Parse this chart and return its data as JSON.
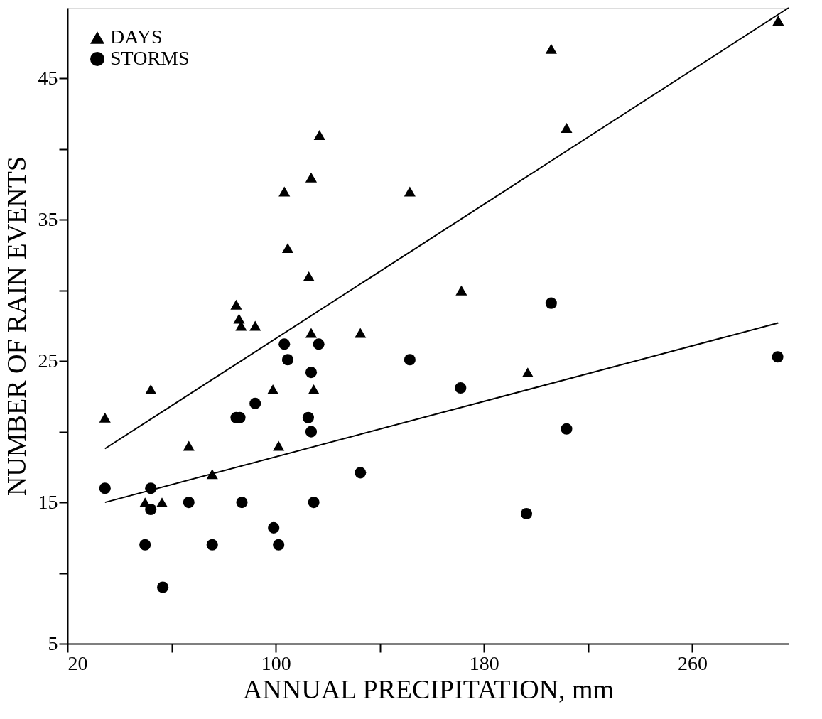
{
  "chart_data": {
    "type": "scatter",
    "xlabel": "ANNUAL PRECIPITATION, mm",
    "ylabel": "NUMBER OF RAIN EVENTS",
    "xlim": [
      20,
      297
    ],
    "xticks": [
      20,
      {
        "value": 60,
        "label": null
      },
      100,
      {
        "value": 140,
        "label": null
      },
      180,
      {
        "value": 220,
        "label": null
      },
      260
    ],
    "ylim": [
      5,
      50
    ],
    "yticks": [
      5,
      {
        "value": 10,
        "label": null
      },
      15,
      {
        "value": 20,
        "label": null
      },
      25,
      {
        "value": 30,
        "label": null
      },
      35,
      {
        "value": 40,
        "label": null
      },
      45
    ],
    "grid": false,
    "legend": "top left",
    "series": [
      {
        "name": "DAYS",
        "color": "#000000",
        "type": "scatter",
        "marker": "triangle",
        "x": [
          34.4,
          49.8,
          52,
          56.3,
          66.6,
          75.6,
          84.8,
          85.9,
          86.7,
          92.1,
          98.9,
          101.1,
          103.3,
          104.6,
          112.7,
          113.6,
          113.6,
          114.6,
          116.8,
          132.5,
          151.5,
          171.3,
          196.8,
          205.8,
          211.7,
          293
        ],
        "values": [
          21,
          15,
          23,
          15,
          19,
          17,
          29,
          28,
          27.5,
          27.5,
          23,
          19,
          37,
          33,
          31,
          38,
          27,
          23,
          41,
          27,
          37,
          30,
          24.2,
          47.1,
          41.5,
          49.1
        ]
      },
      {
        "name": "STORMS",
        "color": "#000000",
        "type": "scatter",
        "marker": "circle",
        "x": [
          34.4,
          49.8,
          52,
          52,
          56.6,
          66.6,
          75.6,
          84.8,
          86.2,
          87,
          92.1,
          99.2,
          101.1,
          103.3,
          104.6,
          112.5,
          113.6,
          113.6,
          114.6,
          116.5,
          132.5,
          151.5,
          171,
          196.3,
          205.8,
          211.7,
          292.8
        ],
        "values": [
          16,
          12,
          16,
          14.5,
          9,
          15,
          12,
          21,
          21,
          15,
          22,
          13.2,
          12,
          26.2,
          25.1,
          21,
          24.2,
          20,
          15,
          26.2,
          17.1,
          25.1,
          23.1,
          14.2,
          29.1,
          20.2,
          25.3
        ]
      },
      {
        "color": "#000000",
        "type": "line",
        "line_style": "solid",
        "x": [
          34.4,
          297
        ],
        "values": [
          18.8,
          50
        ]
      },
      {
        "color": "#000000",
        "type": "line",
        "line_style": "solid",
        "x": [
          34.4,
          293
        ],
        "values": [
          15,
          27.7
        ]
      }
    ]
  }
}
